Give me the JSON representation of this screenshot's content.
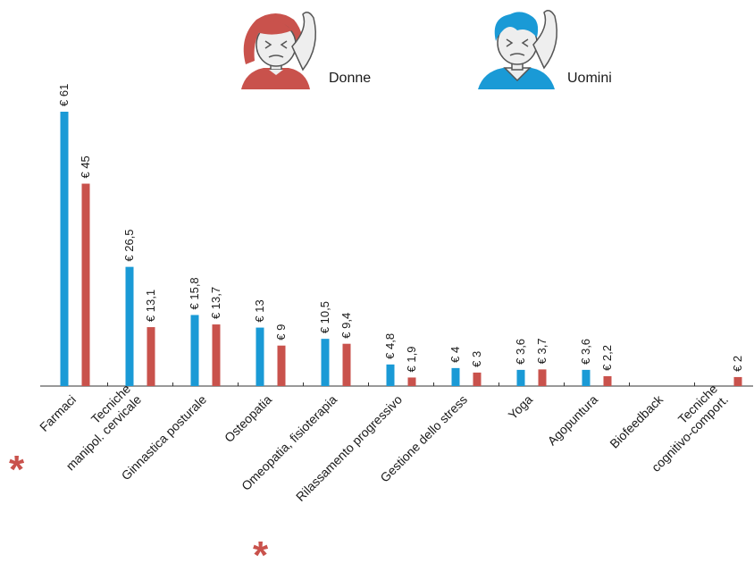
{
  "chart_data": {
    "type": "bar",
    "categories": [
      "Farmaci",
      "Tecniche\nmanipol. cervicale",
      "Ginnastica posturale",
      "Osteopatia",
      "Omeopatia, fisioterapia",
      "Rilassamento progressivo",
      "Gestione dello stress",
      "Yoga",
      "Agopuntura",
      "Biofeedback",
      "Tecniche\ncognitivo-comport."
    ],
    "series": [
      {
        "name": "Donne",
        "color": "#c9524c",
        "values": [
          45,
          13.1,
          13.7,
          9,
          9.4,
          1.9,
          3,
          3.7,
          2.2,
          null,
          2
        ],
        "value_labels": [
          "€ 45",
          "€ 13,1",
          "€ 13,7",
          "€ 9",
          "€ 9,4",
          "€ 1,9",
          "€ 3",
          "€ 3,7",
          "€ 2,2",
          null,
          "€ 2"
        ]
      },
      {
        "name": "Uomini",
        "color": "#1a9ad6",
        "values": [
          61,
          26.5,
          15.8,
          13,
          10.5,
          4.8,
          4,
          3.6,
          3.6,
          null,
          null
        ],
        "value_labels": [
          "€ 61",
          "€ 26,5",
          "€ 15,8",
          "€ 13",
          "€ 10,5",
          "€ 4,8",
          "€ 4",
          "€ 3,6",
          "€ 3,6",
          null,
          null
        ]
      }
    ],
    "annotations": [
      "*",
      "*"
    ]
  }
}
